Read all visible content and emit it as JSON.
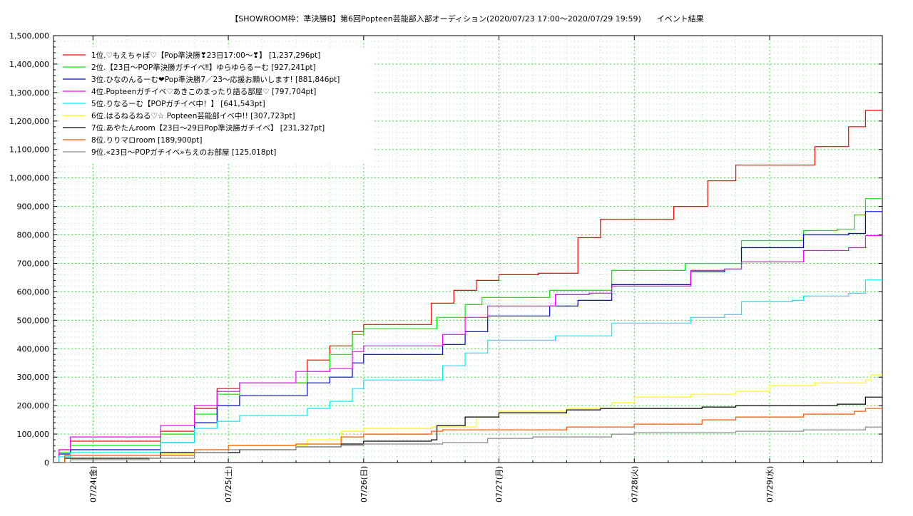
{
  "chart_data": {
    "type": "line",
    "title": "【SHOWROOM枠：準決勝B】第6回Popteen芸能部入部オーディション(2020/07/23 17:00〜2020/07/29 19:59)　　イベント結果",
    "ylim": [
      0,
      1500000
    ],
    "y_ticks": [
      0,
      100000,
      200000,
      300000,
      400000,
      500000,
      600000,
      700000,
      800000,
      900000,
      1000000,
      1100000,
      1200000,
      1300000,
      1400000,
      1500000
    ],
    "y_tick_labels": [
      "0",
      "100,000",
      "200,000",
      "300,000",
      "400,000",
      "500,000",
      "600,000",
      "700,000",
      "800,000",
      "900,000",
      "1,000,000",
      "1,100,000",
      "1,200,000",
      "1,300,000",
      "1,400,000",
      "1,500,000"
    ],
    "x_start": "2020-07-23 17:00",
    "x_end": "2020-07-29 19:59",
    "x_ticks": [
      "2020-07-24 00:00",
      "2020-07-25 00:00",
      "2020-07-26 00:00",
      "2020-07-27 00:00",
      "2020-07-28 00:00",
      "2020-07-29 00:00"
    ],
    "x_tick_labels": [
      "07/24(金)",
      "07/25(土)",
      "07/26(日)",
      "07/27(月)",
      "07/28(火)",
      "07/29(水)"
    ],
    "grid": true,
    "legend_position": "top-left",
    "series": [
      {
        "name": "1位.♡もえちゃぽ♡【Pop準決勝❣23日17:00〜❣】 [1,237,296pt]",
        "color": "#ff0000",
        "points": [
          [
            "2020-07-23 17:00",
            0
          ],
          [
            "2020-07-23 18:00",
            45000
          ],
          [
            "2020-07-23 20:00",
            75000
          ],
          [
            "2020-07-24 09:00",
            75000
          ],
          [
            "2020-07-24 12:00",
            110000
          ],
          [
            "2020-07-24 18:00",
            190000
          ],
          [
            "2020-07-24 22:00",
            260000
          ],
          [
            "2020-07-25 02:00",
            280000
          ],
          [
            "2020-07-25 09:00",
            280000
          ],
          [
            "2020-07-25 14:00",
            360000
          ],
          [
            "2020-07-25 18:00",
            410000
          ],
          [
            "2020-07-25 22:00",
            460000
          ],
          [
            "2020-07-26 00:00",
            485000
          ],
          [
            "2020-07-26 07:00",
            485000
          ],
          [
            "2020-07-26 12:00",
            560000
          ],
          [
            "2020-07-26 16:00",
            605000
          ],
          [
            "2020-07-26 20:00",
            640000
          ],
          [
            "2020-07-27 00:00",
            660000
          ],
          [
            "2020-07-27 07:00",
            665000
          ],
          [
            "2020-07-27 14:00",
            790000
          ],
          [
            "2020-07-27 18:00",
            855000
          ],
          [
            "2020-07-28 03:00",
            855000
          ],
          [
            "2020-07-28 07:00",
            900000
          ],
          [
            "2020-07-28 13:00",
            990000
          ],
          [
            "2020-07-28 18:00",
            1045000
          ],
          [
            "2020-07-29 04:00",
            1045000
          ],
          [
            "2020-07-29 08:00",
            1110000
          ],
          [
            "2020-07-29 14:00",
            1180000
          ],
          [
            "2020-07-29 17:00",
            1237296
          ],
          [
            "2020-07-29 19:59",
            1237296
          ]
        ]
      },
      {
        "name": "2位.【23日〜POP準決勝ガチイベ‼】ゆらゆらるーむ [927,241pt]",
        "color": "#00ee00",
        "points": [
          [
            "2020-07-23 17:00",
            0
          ],
          [
            "2020-07-23 18:00",
            35000
          ],
          [
            "2020-07-23 20:00",
            60000
          ],
          [
            "2020-07-24 09:00",
            60000
          ],
          [
            "2020-07-24 12:00",
            100000
          ],
          [
            "2020-07-24 18:00",
            170000
          ],
          [
            "2020-07-24 22:00",
            240000
          ],
          [
            "2020-07-25 02:00",
            280000
          ],
          [
            "2020-07-25 09:00",
            280000
          ],
          [
            "2020-07-25 14:00",
            320000
          ],
          [
            "2020-07-25 18:00",
            380000
          ],
          [
            "2020-07-25 22:00",
            450000
          ],
          [
            "2020-07-26 00:00",
            470000
          ],
          [
            "2020-07-26 09:00",
            470000
          ],
          [
            "2020-07-26 13:00",
            510000
          ],
          [
            "2020-07-26 18:00",
            555000
          ],
          [
            "2020-07-26 21:00",
            580000
          ],
          [
            "2020-07-27 07:00",
            580000
          ],
          [
            "2020-07-27 09:00",
            605000
          ],
          [
            "2020-07-27 16:00",
            605000
          ],
          [
            "2020-07-27 20:00",
            675000
          ],
          [
            "2020-07-28 07:00",
            675000
          ],
          [
            "2020-07-28 09:00",
            700000
          ],
          [
            "2020-07-28 16:00",
            700000
          ],
          [
            "2020-07-28 19:00",
            780000
          ],
          [
            "2020-07-29 04:00",
            780000
          ],
          [
            "2020-07-29 06:00",
            815000
          ],
          [
            "2020-07-29 12:00",
            820000
          ],
          [
            "2020-07-29 15:00",
            870000
          ],
          [
            "2020-07-29 17:00",
            927241
          ],
          [
            "2020-07-29 19:59",
            927241
          ]
        ]
      },
      {
        "name": "3位.ひなのんるーむ❤Pop準決勝7／23〜応援お願いします! [881,846pt]",
        "color": "#0000dd",
        "points": [
          [
            "2020-07-23 17:00",
            0
          ],
          [
            "2020-07-23 18:00",
            30000
          ],
          [
            "2020-07-23 20:00",
            45000
          ],
          [
            "2020-07-24 09:00",
            45000
          ],
          [
            "2020-07-24 12:00",
            70000
          ],
          [
            "2020-07-24 18:00",
            140000
          ],
          [
            "2020-07-24 22:00",
            200000
          ],
          [
            "2020-07-25 02:00",
            235000
          ],
          [
            "2020-07-25 09:00",
            235000
          ],
          [
            "2020-07-25 14:00",
            280000
          ],
          [
            "2020-07-25 18:00",
            300000
          ],
          [
            "2020-07-25 22:00",
            350000
          ],
          [
            "2020-07-26 00:00",
            380000
          ],
          [
            "2020-07-26 09:00",
            380000
          ],
          [
            "2020-07-26 14:00",
            415000
          ],
          [
            "2020-07-26 18:00",
            460000
          ],
          [
            "2020-07-26 22:00",
            515000
          ],
          [
            "2020-07-27 07:00",
            515000
          ],
          [
            "2020-07-27 09:00",
            550000
          ],
          [
            "2020-07-27 14:00",
            570000
          ],
          [
            "2020-07-27 20:00",
            625000
          ],
          [
            "2020-07-28 07:00",
            625000
          ],
          [
            "2020-07-28 10:00",
            670000
          ],
          [
            "2020-07-28 16:00",
            680000
          ],
          [
            "2020-07-28 19:00",
            755000
          ],
          [
            "2020-07-29 04:00",
            755000
          ],
          [
            "2020-07-29 06:00",
            800000
          ],
          [
            "2020-07-29 14:00",
            805000
          ],
          [
            "2020-07-29 17:00",
            881846
          ],
          [
            "2020-07-29 19:59",
            881846
          ]
        ]
      },
      {
        "name": "4位.Popteenガチイベ♡あきこのまったり語る部屋♡ [797,704pt]",
        "color": "#ff00ff",
        "points": [
          [
            "2020-07-23 17:00",
            0
          ],
          [
            "2020-07-23 18:00",
            45000
          ],
          [
            "2020-07-23 20:00",
            90000
          ],
          [
            "2020-07-24 09:00",
            90000
          ],
          [
            "2020-07-24 12:00",
            130000
          ],
          [
            "2020-07-24 18:00",
            200000
          ],
          [
            "2020-07-24 22:00",
            250000
          ],
          [
            "2020-07-25 02:00",
            280000
          ],
          [
            "2020-07-25 09:00",
            280000
          ],
          [
            "2020-07-25 12:00",
            320000
          ],
          [
            "2020-07-25 18:00",
            330000
          ],
          [
            "2020-07-25 22:00",
            390000
          ],
          [
            "2020-07-26 00:00",
            410000
          ],
          [
            "2020-07-26 09:00",
            410000
          ],
          [
            "2020-07-26 14:00",
            450000
          ],
          [
            "2020-07-26 18:00",
            510000
          ],
          [
            "2020-07-26 22:00",
            550000
          ],
          [
            "2020-07-27 07:00",
            550000
          ],
          [
            "2020-07-27 10:00",
            590000
          ],
          [
            "2020-07-27 16:00",
            595000
          ],
          [
            "2020-07-27 20:00",
            620000
          ],
          [
            "2020-07-28 07:00",
            620000
          ],
          [
            "2020-07-28 10:00",
            675000
          ],
          [
            "2020-07-28 16:00",
            680000
          ],
          [
            "2020-07-28 19:00",
            705000
          ],
          [
            "2020-07-29 04:00",
            705000
          ],
          [
            "2020-07-29 06:00",
            745000
          ],
          [
            "2020-07-29 14:00",
            755000
          ],
          [
            "2020-07-29 17:00",
            797704
          ],
          [
            "2020-07-29 19:59",
            797704
          ]
        ]
      },
      {
        "name": "5位.りなるーむ【POPガチイベ中！】 [641,543pt]",
        "color": "#00f0f0",
        "points": [
          [
            "2020-07-23 17:00",
            0
          ],
          [
            "2020-07-23 18:00",
            20000
          ],
          [
            "2020-07-23 20:00",
            35000
          ],
          [
            "2020-07-24 09:00",
            35000
          ],
          [
            "2020-07-24 12:00",
            70000
          ],
          [
            "2020-07-24 18:00",
            120000
          ],
          [
            "2020-07-24 22:00",
            145000
          ],
          [
            "2020-07-25 02:00",
            165000
          ],
          [
            "2020-07-25 09:00",
            165000
          ],
          [
            "2020-07-25 14:00",
            190000
          ],
          [
            "2020-07-25 18:00",
            215000
          ],
          [
            "2020-07-25 22:00",
            260000
          ],
          [
            "2020-07-26 00:00",
            290000
          ],
          [
            "2020-07-26 09:00",
            290000
          ],
          [
            "2020-07-26 14:00",
            340000
          ],
          [
            "2020-07-26 18:00",
            385000
          ],
          [
            "2020-07-26 22:00",
            430000
          ],
          [
            "2020-07-27 07:00",
            430000
          ],
          [
            "2020-07-27 10:00",
            445000
          ],
          [
            "2020-07-27 16:00",
            445000
          ],
          [
            "2020-07-27 20:00",
            490000
          ],
          [
            "2020-07-28 07:00",
            490000
          ],
          [
            "2020-07-28 10:00",
            510000
          ],
          [
            "2020-07-28 16:00",
            520000
          ],
          [
            "2020-07-28 19:00",
            565000
          ],
          [
            "2020-07-29 04:00",
            570000
          ],
          [
            "2020-07-29 06:00",
            585000
          ],
          [
            "2020-07-29 14:00",
            595000
          ],
          [
            "2020-07-29 17:00",
            641543
          ],
          [
            "2020-07-29 19:59",
            641543
          ]
        ]
      },
      {
        "name": "6位.はるねるねる♡☆ Popteen芸能部イベ中!! [307,723pt]",
        "color": "#ffff00",
        "points": [
          [
            "2020-07-23 17:00",
            0
          ],
          [
            "2020-07-23 19:00",
            15000
          ],
          [
            "2020-07-24 12:00",
            30000
          ],
          [
            "2020-07-24 18:00",
            45000
          ],
          [
            "2020-07-25 00:00",
            60000
          ],
          [
            "2020-07-25 09:00",
            60000
          ],
          [
            "2020-07-25 14:00",
            80000
          ],
          [
            "2020-07-25 20:00",
            110000
          ],
          [
            "2020-07-26 00:00",
            120000
          ],
          [
            "2020-07-26 12:00",
            125000
          ],
          [
            "2020-07-26 20:00",
            160000
          ],
          [
            "2020-07-27 00:00",
            180000
          ],
          [
            "2020-07-27 12:00",
            190000
          ],
          [
            "2020-07-27 20:00",
            210000
          ],
          [
            "2020-07-28 00:00",
            230000
          ],
          [
            "2020-07-28 10:00",
            240000
          ],
          [
            "2020-07-28 18:00",
            250000
          ],
          [
            "2020-07-29 00:00",
            270000
          ],
          [
            "2020-07-29 08:00",
            280000
          ],
          [
            "2020-07-29 17:00",
            290000
          ],
          [
            "2020-07-29 18:00",
            307723
          ],
          [
            "2020-07-29 19:59",
            307723
          ]
        ]
      },
      {
        "name": "7位.あやたんroom【23日〜29日Pop準決勝ガチイベ】 [231,327pt]",
        "color": "#000000",
        "points": [
          [
            "2020-07-23 17:00",
            0
          ],
          [
            "2020-07-23 19:00",
            15000
          ],
          [
            "2020-07-24 10:00",
            15000
          ],
          [
            "2020-07-24 12:00",
            35000
          ],
          [
            "2020-07-24 22:00",
            35000
          ],
          [
            "2020-07-25 02:00",
            45000
          ],
          [
            "2020-07-25 12:00",
            55000
          ],
          [
            "2020-07-25 20:00",
            65000
          ],
          [
            "2020-07-26 00:00",
            75000
          ],
          [
            "2020-07-26 12:00",
            80000
          ],
          [
            "2020-07-26 13:00",
            130000
          ],
          [
            "2020-07-26 18:00",
            160000
          ],
          [
            "2020-07-27 00:00",
            175000
          ],
          [
            "2020-07-27 12:00",
            185000
          ],
          [
            "2020-07-27 18:00",
            190000
          ],
          [
            "2020-07-28 12:00",
            195000
          ],
          [
            "2020-07-28 18:00",
            200000
          ],
          [
            "2020-07-29 12:00",
            205000
          ],
          [
            "2020-07-29 17:00",
            230000
          ],
          [
            "2020-07-29 19:59",
            231327
          ]
        ]
      },
      {
        "name": "8位.りりマロroom [189,900pt]",
        "color": "#ff5500",
        "points": [
          [
            "2020-07-23 17:00",
            0
          ],
          [
            "2020-07-23 19:00",
            25000
          ],
          [
            "2020-07-24 10:00",
            25000
          ],
          [
            "2020-07-24 18:00",
            45000
          ],
          [
            "2020-07-25 00:00",
            60000
          ],
          [
            "2020-07-25 12:00",
            65000
          ],
          [
            "2020-07-25 20:00",
            90000
          ],
          [
            "2020-07-26 00:00",
            100000
          ],
          [
            "2020-07-26 12:00",
            110000
          ],
          [
            "2020-07-26 14:00",
            115000
          ],
          [
            "2020-07-27 06:00",
            115000
          ],
          [
            "2020-07-27 12:00",
            125000
          ],
          [
            "2020-07-27 20:00",
            125000
          ],
          [
            "2020-07-28 00:00",
            135000
          ],
          [
            "2020-07-28 12:00",
            150000
          ],
          [
            "2020-07-28 18:00",
            160000
          ],
          [
            "2020-07-29 06:00",
            170000
          ],
          [
            "2020-07-29 15:00",
            180000
          ],
          [
            "2020-07-29 17:00",
            189900
          ],
          [
            "2020-07-29 19:59",
            189900
          ]
        ]
      },
      {
        "name": "9位.«23日〜POPガチイベ»ちえのお部屋 [125,018pt]",
        "color": "#888888",
        "points": [
          [
            "2020-07-23 17:00",
            0
          ],
          [
            "2020-07-23 20:00",
            10000
          ],
          [
            "2020-07-24 10:00",
            15000
          ],
          [
            "2020-07-24 18:00",
            35000
          ],
          [
            "2020-07-25 00:00",
            45000
          ],
          [
            "2020-07-25 12:00",
            55000
          ],
          [
            "2020-07-25 20:00",
            60000
          ],
          [
            "2020-07-26 00:00",
            65000
          ],
          [
            "2020-07-26 14:00",
            70000
          ],
          [
            "2020-07-26 22:00",
            85000
          ],
          [
            "2020-07-27 06:00",
            90000
          ],
          [
            "2020-07-27 12:00",
            90000
          ],
          [
            "2020-07-27 20:00",
            100000
          ],
          [
            "2020-07-28 00:00",
            105000
          ],
          [
            "2020-07-28 18:00",
            110000
          ],
          [
            "2020-07-29 06:00",
            115000
          ],
          [
            "2020-07-29 17:00",
            125018
          ],
          [
            "2020-07-29 19:59",
            125018
          ]
        ]
      }
    ]
  }
}
